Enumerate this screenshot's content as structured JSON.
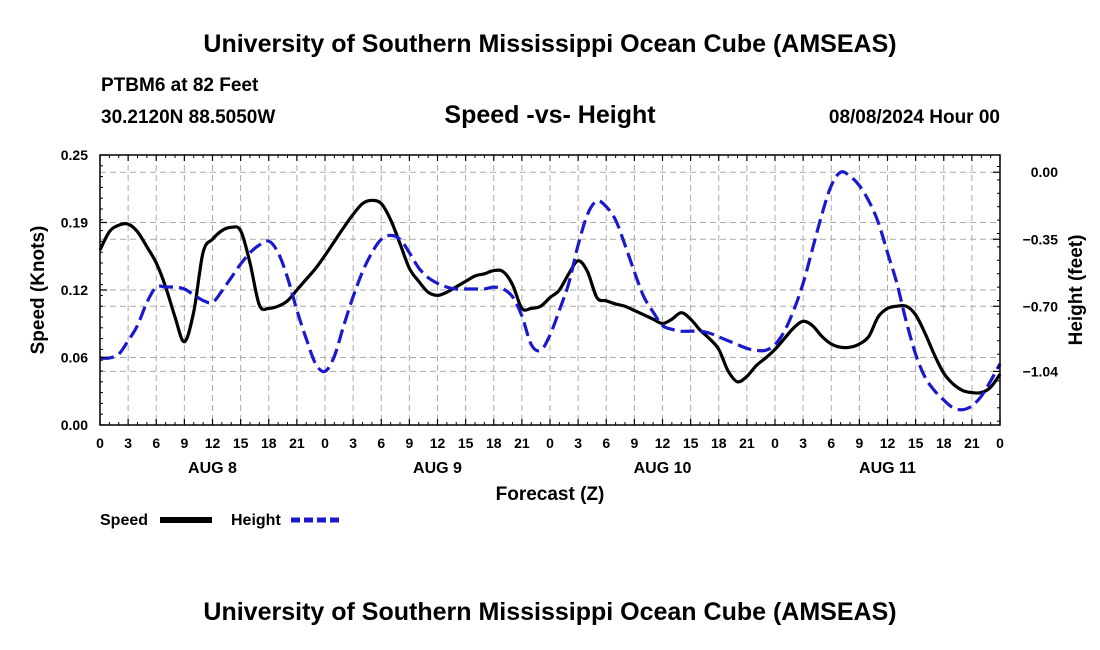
{
  "header": {
    "title_top": "University of Southern Mississippi Ocean Cube (AMSEAS)",
    "title_bottom": "University of Southern Mississippi Ocean Cube (AMSEAS)",
    "station": "PTBM6 at 82 Feet",
    "coords": "30.2120N  88.5050W",
    "subtitle": "Speed -vs- Height",
    "date": "08/08/2024 Hour 00"
  },
  "chart_data": {
    "type": "line",
    "title": "Speed -vs- Height",
    "xlabel": "Forecast (Z)",
    "ylabel": "Speed (Knots)",
    "y2label": "Height (feet)",
    "x_range_hours": [
      0,
      96
    ],
    "ylim": [
      0,
      0.25
    ],
    "y2lim": [
      -1.32,
      0.09
    ],
    "y_ticks": [
      "0.00",
      "0.06",
      "0.12",
      "0.19",
      "0.25"
    ],
    "y_tick_values": [
      0,
      0.0625,
      0.125,
      0.1875,
      0.25
    ],
    "y2_ticks": [
      "0.00",
      "−0.35",
      "−0.70",
      "−1.04"
    ],
    "y2_tick_values": [
      0,
      -0.35,
      -0.7,
      -1.04
    ],
    "x_ticks": [
      "0",
      "3",
      "6",
      "9",
      "12",
      "15",
      "18",
      "21",
      "0",
      "3",
      "6",
      "9",
      "12",
      "15",
      "18",
      "21",
      "0",
      "3",
      "6",
      "9",
      "12",
      "15",
      "18",
      "21",
      "0",
      "3",
      "6",
      "9",
      "12",
      "15",
      "18",
      "21",
      "0"
    ],
    "x_tick_hours": [
      0,
      3,
      6,
      9,
      12,
      15,
      18,
      21,
      24,
      27,
      30,
      33,
      36,
      39,
      42,
      45,
      48,
      51,
      54,
      57,
      60,
      63,
      66,
      69,
      72,
      75,
      78,
      81,
      84,
      87,
      90,
      93,
      96
    ],
    "days": [
      {
        "label": "AUG 8",
        "hour": 12
      },
      {
        "label": "AUG 9",
        "hour": 36
      },
      {
        "label": "AUG 10",
        "hour": 60
      },
      {
        "label": "AUG 11",
        "hour": 84
      }
    ],
    "grid": true,
    "series": [
      {
        "name": "Speed",
        "color": "#000000",
        "style": "solid",
        "axis": "left",
        "x": [
          0,
          1,
          2,
          3,
          4,
          5,
          6,
          7,
          8,
          9,
          10,
          11,
          12,
          13,
          14,
          15,
          16,
          17,
          18,
          19,
          20,
          21,
          22,
          23,
          24,
          25,
          26,
          27,
          28,
          29,
          30,
          31,
          32,
          33,
          34,
          35,
          36,
          37,
          38,
          39,
          40,
          41,
          42,
          43,
          44,
          45,
          46,
          47,
          48,
          49,
          50,
          51,
          52,
          53,
          54,
          55,
          56,
          57,
          58,
          59,
          60,
          61,
          62,
          63,
          64,
          65,
          66,
          67,
          68,
          69,
          70,
          71,
          72,
          73,
          74,
          75,
          76,
          77,
          78,
          79,
          80,
          81,
          82,
          83,
          84,
          85,
          86,
          87,
          88,
          89,
          90,
          91,
          92,
          93,
          94,
          95,
          96
        ],
        "values": [
          0.162,
          0.179,
          0.185,
          0.186,
          0.179,
          0.165,
          0.15,
          0.128,
          0.1,
          0.077,
          0.105,
          0.16,
          0.172,
          0.18,
          0.183,
          0.18,
          0.15,
          0.111,
          0.108,
          0.11,
          0.115,
          0.125,
          0.135,
          0.145,
          0.157,
          0.17,
          0.183,
          0.195,
          0.205,
          0.208,
          0.205,
          0.19,
          0.168,
          0.145,
          0.133,
          0.123,
          0.12,
          0.123,
          0.128,
          0.133,
          0.138,
          0.14,
          0.143,
          0.142,
          0.13,
          0.108,
          0.108,
          0.11,
          0.118,
          0.125,
          0.14,
          0.152,
          0.142,
          0.118,
          0.115,
          0.112,
          0.11,
          0.106,
          0.102,
          0.098,
          0.094,
          0.098,
          0.104,
          0.098,
          0.088,
          0.08,
          0.07,
          0.05,
          0.04,
          0.045,
          0.055,
          0.062,
          0.07,
          0.08,
          0.09,
          0.096,
          0.092,
          0.082,
          0.075,
          0.072,
          0.072,
          0.075,
          0.082,
          0.1,
          0.108,
          0.11,
          0.11,
          0.102,
          0.085,
          0.065,
          0.048,
          0.038,
          0.032,
          0.03,
          0.03,
          0.035,
          0.047
        ]
      },
      {
        "name": "Height",
        "color": "#1a1acc",
        "style": "dashed",
        "axis": "right",
        "x": [
          0,
          1,
          2,
          3,
          4,
          5,
          6,
          7,
          8,
          9,
          10,
          11,
          12,
          13,
          14,
          15,
          16,
          17,
          18,
          19,
          20,
          21,
          22,
          23,
          24,
          25,
          26,
          27,
          28,
          29,
          30,
          31,
          32,
          33,
          34,
          35,
          36,
          37,
          38,
          39,
          40,
          41,
          42,
          43,
          44,
          45,
          46,
          47,
          48,
          49,
          50,
          51,
          52,
          53,
          54,
          55,
          56,
          57,
          58,
          59,
          60,
          61,
          62,
          63,
          64,
          65,
          66,
          67,
          68,
          69,
          70,
          71,
          72,
          73,
          74,
          75,
          76,
          77,
          78,
          79,
          80,
          81,
          82,
          83,
          84,
          85,
          86,
          87,
          88,
          89,
          90,
          91,
          92,
          93,
          94,
          95,
          96
        ],
        "values": [
          -0.97,
          -0.97,
          -0.95,
          -0.88,
          -0.8,
          -0.68,
          -0.6,
          -0.6,
          -0.6,
          -0.61,
          -0.64,
          -0.67,
          -0.68,
          -0.62,
          -0.55,
          -0.48,
          -0.42,
          -0.38,
          -0.36,
          -0.42,
          -0.55,
          -0.72,
          -0.87,
          -1.0,
          -1.04,
          -0.96,
          -0.8,
          -0.65,
          -0.52,
          -0.42,
          -0.35,
          -0.33,
          -0.35,
          -0.42,
          -0.5,
          -0.55,
          -0.58,
          -0.6,
          -0.61,
          -0.61,
          -0.61,
          -0.61,
          -0.6,
          -0.61,
          -0.65,
          -0.75,
          -0.9,
          -0.93,
          -0.85,
          -0.72,
          -0.58,
          -0.38,
          -0.22,
          -0.15,
          -0.18,
          -0.25,
          -0.38,
          -0.52,
          -0.65,
          -0.73,
          -0.8,
          -0.82,
          -0.83,
          -0.83,
          -0.83,
          -0.84,
          -0.86,
          -0.88,
          -0.9,
          -0.92,
          -0.93,
          -0.93,
          -0.9,
          -0.83,
          -0.72,
          -0.58,
          -0.4,
          -0.22,
          -0.07,
          0.0,
          -0.02,
          -0.07,
          -0.15,
          -0.26,
          -0.42,
          -0.58,
          -0.78,
          -0.95,
          -1.07,
          -1.14,
          -1.19,
          -1.23,
          -1.24,
          -1.22,
          -1.17,
          -1.09,
          -1.0
        ]
      }
    ]
  }
}
